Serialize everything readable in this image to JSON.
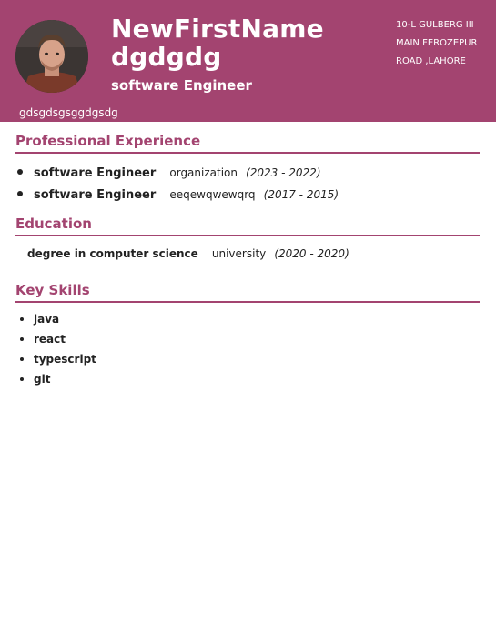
{
  "header": {
    "first_name": "NewFirstName",
    "last_name": "dgdgdg",
    "job_title": "software Engineer",
    "address_lines": [
      "10-L GULBERG III",
      "MAIN FEROZEPUR",
      "ROAD ,LAHORE"
    ],
    "summary": "gdsgdsgsggdgsdg",
    "accent_color": "#a34470"
  },
  "experience": {
    "title": "Professional Experience",
    "items": [
      {
        "role": "software Engineer",
        "organization": "organization",
        "dates": "(2023 - 2022)"
      },
      {
        "role": "software Engineer",
        "organization": "eeqewqwewqrq",
        "dates": "(2017 - 2015)"
      }
    ]
  },
  "education": {
    "title": "Education",
    "items": [
      {
        "degree": "degree in computer science",
        "institution": "university",
        "dates": "(2020 - 2020)"
      }
    ]
  },
  "skills": {
    "title": "Key Skills",
    "items": [
      "java",
      "react",
      "typescript",
      "git"
    ]
  }
}
